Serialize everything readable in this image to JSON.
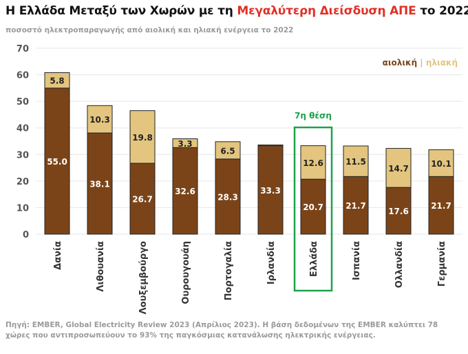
{
  "title": {
    "part1": "Η Ελλάδα Μεταξύ των Χωρών με τη ",
    "highlight": "Μεγαλύτερη Διείσδυση ΑΠΕ",
    "part2": " το 2022"
  },
  "subtitle": "ποσοστό ηλεκτροπαραγωγής από αιολική και ηλιακή ενέργεια το 2022",
  "source": "Πηγή: EMBER, Global Electricity Review 2023 (Απρίλιος 2023). Η βάση δεδομένων της EMBER καλύπτει 78 χώρες που αντιπροσωπεύουν το 93% της παγκόσμιας κατανάλωσης ηλεκτρικής ενέργειας.",
  "legend": {
    "separator": " | "
  },
  "colors": {
    "title_highlight": "#e03127",
    "wind": "#7b4418",
    "solar": "#e3c57f",
    "highlight_box": "#1aa24a",
    "axis_text": "#555555",
    "grid": "#e6e6e6"
  },
  "annotation": {
    "label": "7η θέση",
    "category": "Ελλάδα"
  },
  "chart_data": {
    "type": "bar",
    "stacked": true,
    "categories": [
      "Δανία",
      "Λιθουανία",
      "Λουξεμβούργο",
      "Ουρουγουάη",
      "Πορτογαλία",
      "Ιρλανδία",
      "Ελλάδα",
      "Ισπανία",
      "Ολλανδία",
      "Γερμανία"
    ],
    "series": [
      {
        "name": "αιολική",
        "values": [
          55.0,
          38.1,
          26.7,
          32.6,
          28.3,
          33.3,
          20.7,
          21.7,
          17.6,
          21.7
        ]
      },
      {
        "name": "ηλιακή",
        "values": [
          5.8,
          10.3,
          19.8,
          3.3,
          6.5,
          0.3,
          12.6,
          11.5,
          14.7,
          10.1
        ]
      }
    ],
    "data_labels": [
      [
        "55.0",
        "38.1",
        "26.7",
        "32.6",
        "28.3",
        "33.3",
        "20.7",
        "21.7",
        "17.6",
        "21.7"
      ],
      [
        "5.8",
        "10.3",
        "19.8",
        "3.3",
        "6.5",
        "",
        "12.6",
        "11.5",
        "14.7",
        "10.1"
      ]
    ],
    "yticks": [
      "0",
      "10",
      "20",
      "30",
      "40",
      "50",
      "60",
      "70"
    ],
    "ylim": [
      0,
      70
    ],
    "grid": true,
    "legend_position": "top-right"
  }
}
